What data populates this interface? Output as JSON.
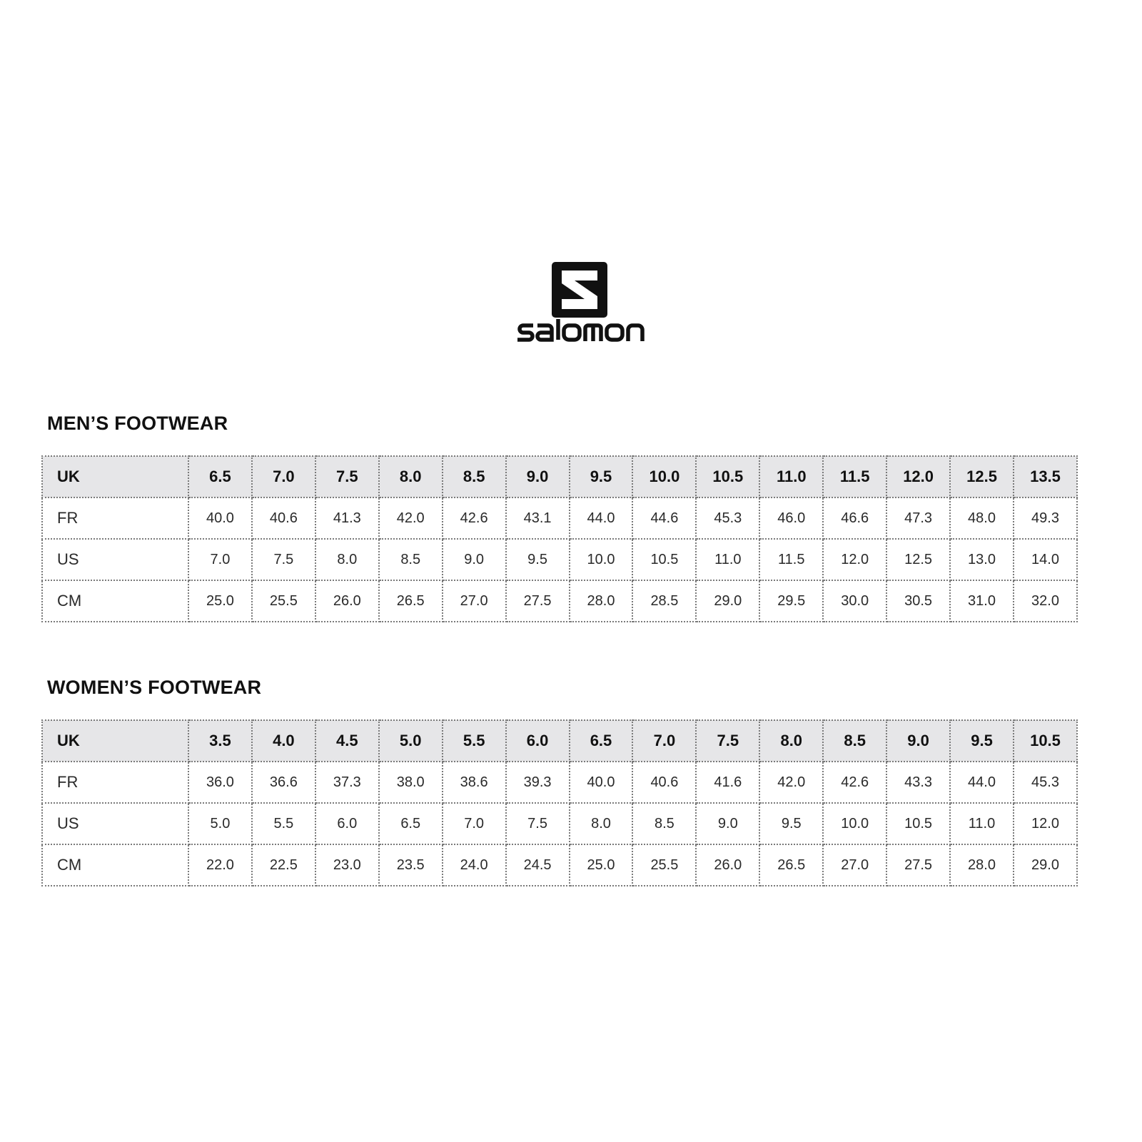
{
  "brand": {
    "name": "salomon",
    "logo_icon": "salomon-s-logo-icon"
  },
  "mens": {
    "title": "MEN’S FOOTWEAR",
    "rows": [
      {
        "label": "UK",
        "values": [
          "6.5",
          "7.0",
          "7.5",
          "8.0",
          "8.5",
          "9.0",
          "9.5",
          "10.0",
          "10.5",
          "11.0",
          "11.5",
          "12.0",
          "12.5",
          "13.5"
        ]
      },
      {
        "label": "FR",
        "values": [
          "40.0",
          "40.6",
          "41.3",
          "42.0",
          "42.6",
          "43.1",
          "44.0",
          "44.6",
          "45.3",
          "46.0",
          "46.6",
          "47.3",
          "48.0",
          "49.3"
        ]
      },
      {
        "label": "US",
        "values": [
          "7.0",
          "7.5",
          "8.0",
          "8.5",
          "9.0",
          "9.5",
          "10.0",
          "10.5",
          "11.0",
          "11.5",
          "12.0",
          "12.5",
          "13.0",
          "14.0"
        ]
      },
      {
        "label": "CM",
        "values": [
          "25.0",
          "25.5",
          "26.0",
          "26.5",
          "27.0",
          "27.5",
          "28.0",
          "28.5",
          "29.0",
          "29.5",
          "30.0",
          "30.5",
          "31.0",
          "32.0"
        ]
      }
    ]
  },
  "womens": {
    "title": "WOMEN’S FOOTWEAR",
    "rows": [
      {
        "label": "UK",
        "values": [
          "3.5",
          "4.0",
          "4.5",
          "5.0",
          "5.5",
          "6.0",
          "6.5",
          "7.0",
          "7.5",
          "8.0",
          "8.5",
          "9.0",
          "9.5",
          "10.5"
        ]
      },
      {
        "label": "FR",
        "values": [
          "36.0",
          "36.6",
          "37.3",
          "38.0",
          "38.6",
          "39.3",
          "40.0",
          "40.6",
          "41.6",
          "42.0",
          "42.6",
          "43.3",
          "44.0",
          "45.3"
        ]
      },
      {
        "label": "US",
        "values": [
          "5.0",
          "5.5",
          "6.0",
          "6.5",
          "7.0",
          "7.5",
          "8.0",
          "8.5",
          "9.0",
          "9.5",
          "10.0",
          "10.5",
          "11.0",
          "12.0"
        ]
      },
      {
        "label": "CM",
        "values": [
          "22.0",
          "22.5",
          "23.0",
          "23.5",
          "24.0",
          "24.5",
          "25.0",
          "25.5",
          "26.0",
          "26.5",
          "27.0",
          "27.5",
          "28.0",
          "29.0"
        ]
      }
    ]
  },
  "colors": {
    "header_bg": "#e6e6e8",
    "border": "#7a7a7a",
    "text": "#1a1a1a"
  }
}
